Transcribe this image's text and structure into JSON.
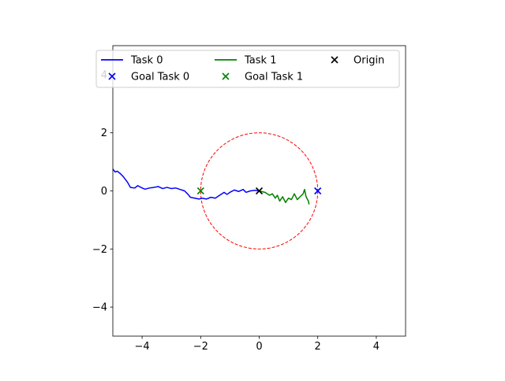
{
  "chart_data": {
    "type": "line",
    "title": "",
    "xlabel": "",
    "ylabel": "",
    "xlim": [
      -5,
      5
    ],
    "ylim": [
      -5,
      5
    ],
    "xticks": [
      -4,
      -2,
      0,
      2,
      4
    ],
    "yticks": [
      -4,
      -2,
      0,
      2,
      4
    ],
    "xtick_labels": [
      "−4",
      "−2",
      "0",
      "2",
      "4"
    ],
    "ytick_labels": [
      "−4",
      "−2",
      "0",
      "2",
      "4"
    ],
    "grid": false,
    "legend_placement": "top",
    "series": [
      {
        "name": "Task 0",
        "kind": "line",
        "color": "#0000ff",
        "points": [
          [
            0,
            0
          ],
          [
            -0.15,
            0.02
          ],
          [
            -0.3,
            0.0
          ],
          [
            -0.45,
            -0.05
          ],
          [
            -0.55,
            0.05
          ],
          [
            -0.7,
            -0.02
          ],
          [
            -0.85,
            0.03
          ],
          [
            -1.0,
            -0.05
          ],
          [
            -1.1,
            -0.12
          ],
          [
            -1.2,
            -0.05
          ],
          [
            -1.35,
            -0.15
          ],
          [
            -1.5,
            -0.25
          ],
          [
            -1.65,
            -0.22
          ],
          [
            -1.8,
            -0.28
          ],
          [
            -1.95,
            -0.25
          ],
          [
            -2.05,
            -0.28
          ],
          [
            -2.2,
            -0.25
          ],
          [
            -2.35,
            -0.22
          ],
          [
            -2.45,
            -0.1
          ],
          [
            -2.55,
            0.0
          ],
          [
            -2.7,
            0.05
          ],
          [
            -2.85,
            0.1
          ],
          [
            -3.0,
            0.08
          ],
          [
            -3.15,
            0.12
          ],
          [
            -3.3,
            0.08
          ],
          [
            -3.45,
            0.15
          ],
          [
            -3.6,
            0.12
          ],
          [
            -3.75,
            0.1
          ],
          [
            -3.9,
            0.06
          ],
          [
            -4.0,
            0.1
          ],
          [
            -4.15,
            0.18
          ],
          [
            -4.25,
            0.1
          ],
          [
            -4.4,
            0.12
          ],
          [
            -4.5,
            0.3
          ],
          [
            -4.65,
            0.5
          ],
          [
            -4.75,
            0.6
          ],
          [
            -4.85,
            0.68
          ],
          [
            -4.92,
            0.65
          ],
          [
            -5.0,
            0.75
          ]
        ]
      },
      {
        "name": "Task 1",
        "kind": "line",
        "color": "#008000",
        "points": [
          [
            0,
            0
          ],
          [
            0.2,
            -0.05
          ],
          [
            0.35,
            -0.15
          ],
          [
            0.45,
            -0.1
          ],
          [
            0.55,
            -0.25
          ],
          [
            0.62,
            -0.15
          ],
          [
            0.7,
            -0.35
          ],
          [
            0.8,
            -0.2
          ],
          [
            0.9,
            -0.4
          ],
          [
            1.0,
            -0.25
          ],
          [
            1.1,
            -0.3
          ],
          [
            1.2,
            -0.1
          ],
          [
            1.3,
            -0.3
          ],
          [
            1.4,
            -0.2
          ],
          [
            1.5,
            -0.1
          ],
          [
            1.55,
            0.05
          ],
          [
            1.6,
            -0.2
          ],
          [
            1.68,
            -0.35
          ],
          [
            1.7,
            -0.45
          ]
        ]
      },
      {
        "name": "Goal Task 0",
        "kind": "marker",
        "marker": "x",
        "color": "#0000ff",
        "points": [
          [
            2,
            0
          ]
        ]
      },
      {
        "name": "Goal Task 1",
        "kind": "marker",
        "marker": "x",
        "color": "#008000",
        "points": [
          [
            -2,
            0
          ]
        ]
      },
      {
        "name": "Origin",
        "kind": "marker",
        "marker": "x",
        "color": "#000000",
        "points": [
          [
            0,
            0
          ]
        ]
      }
    ],
    "shapes": [
      {
        "type": "circle",
        "center": [
          0,
          0
        ],
        "radius": 2,
        "style": "dashed",
        "color": "#ff0000"
      }
    ]
  }
}
